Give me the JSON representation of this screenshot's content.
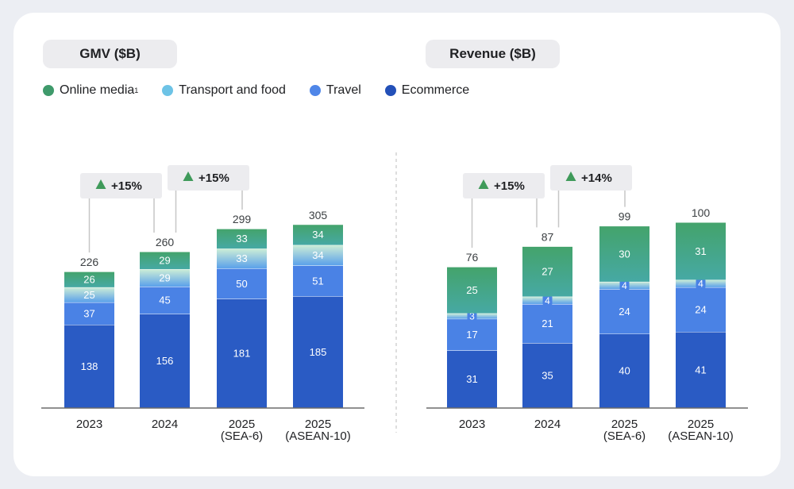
{
  "legend": [
    {
      "label": "Online media",
      "sup": "1",
      "color": "#3f9a6b"
    },
    {
      "label": "Transport and food",
      "sup": "",
      "color": "#6dc3e6"
    },
    {
      "label": "Travel",
      "sup": "",
      "color": "#4f86e8"
    },
    {
      "label": "Ecommerce",
      "sup": "",
      "color": "#2350b8"
    }
  ],
  "colors": {
    "ecommerce": "#2a5bc4",
    "travel": "#4a82e5",
    "transport_top": "#cdeed6",
    "transport_bottom": "#5aa0ea",
    "media_top": "#44a36b",
    "media_bottom": "#46a9a4",
    "growth_arrow": "#3f9a5a",
    "callout_bg": "#ececef",
    "axis": "#6b6b6b",
    "label_dark": "#202124",
    "label_total": "#3c4043"
  },
  "chart_data": [
    {
      "type": "bar",
      "stacked": true,
      "title": "GMV ($B)",
      "categories": [
        "2023",
        "2024",
        "2025\n(SEA-6)",
        "2025\n(ASEAN-10)"
      ],
      "series": [
        {
          "name": "Ecommerce",
          "values": [
            138,
            156,
            181,
            185
          ]
        },
        {
          "name": "Travel",
          "values": [
            37,
            45,
            50,
            51
          ]
        },
        {
          "name": "Transport and food",
          "values": [
            25,
            29,
            33,
            34
          ]
        },
        {
          "name": "Online media",
          "values": [
            26,
            29,
            33,
            34
          ]
        }
      ],
      "totals": [
        226,
        260,
        299,
        305
      ],
      "growth_callouts": [
        {
          "label": "+15%",
          "from": 0,
          "to": 1
        },
        {
          "label": "+15%",
          "from": 1,
          "to": 2
        }
      ],
      "ylim": [
        0,
        305
      ]
    },
    {
      "type": "bar",
      "stacked": true,
      "title": "Revenue ($B)",
      "categories": [
        "2023",
        "2024",
        "2025\n(SEA-6)",
        "2025\n(ASEAN-10)"
      ],
      "series": [
        {
          "name": "Ecommerce",
          "values": [
            31,
            35,
            40,
            41
          ]
        },
        {
          "name": "Travel",
          "values": [
            17,
            21,
            24,
            24
          ]
        },
        {
          "name": "Transport and food",
          "values": [
            3,
            4,
            4,
            4
          ]
        },
        {
          "name": "Online media",
          "values": [
            25,
            27,
            30,
            31
          ]
        }
      ],
      "totals": [
        76,
        87,
        99,
        100
      ],
      "growth_callouts": [
        {
          "label": "+15%",
          "from": 0,
          "to": 1
        },
        {
          "label": "+14%",
          "from": 1,
          "to": 2
        }
      ],
      "ylim": [
        0,
        100
      ]
    }
  ]
}
